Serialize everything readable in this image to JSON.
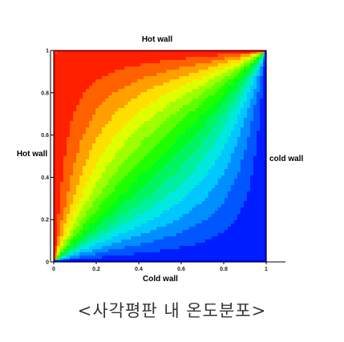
{
  "chart_data": {
    "type": "heatmap",
    "title": "Hot wall",
    "xlabel": "Cold wall",
    "ylabel": "Hot wall",
    "right_label": "cold wall",
    "xlim": [
      0,
      1
    ],
    "ylim": [
      0,
      1
    ],
    "x_ticks": [
      "0",
      "0.2",
      "0.4",
      "0.6",
      "0.8",
      "1"
    ],
    "y_ticks": [
      "0",
      "0.2",
      "0.4",
      "0.6",
      "0.8",
      "1"
    ],
    "x_tick_values": [
      0,
      0.2,
      0.4,
      0.6,
      0.8,
      1
    ],
    "y_tick_values": [
      0,
      0.2,
      0.4,
      0.6,
      0.8,
      1
    ],
    "field": "temperature",
    "boundary_conditions": {
      "top": "hot",
      "left": "hot",
      "bottom": "cold",
      "right": "cold"
    },
    "levels": 16,
    "colormap": [
      "#0000ff",
      "#00e5ff",
      "#00ff00",
      "#ffff00",
      "#ff0000"
    ],
    "grid": false,
    "legend": "none"
  },
  "caption": "<사각평판 내 온도분포>"
}
